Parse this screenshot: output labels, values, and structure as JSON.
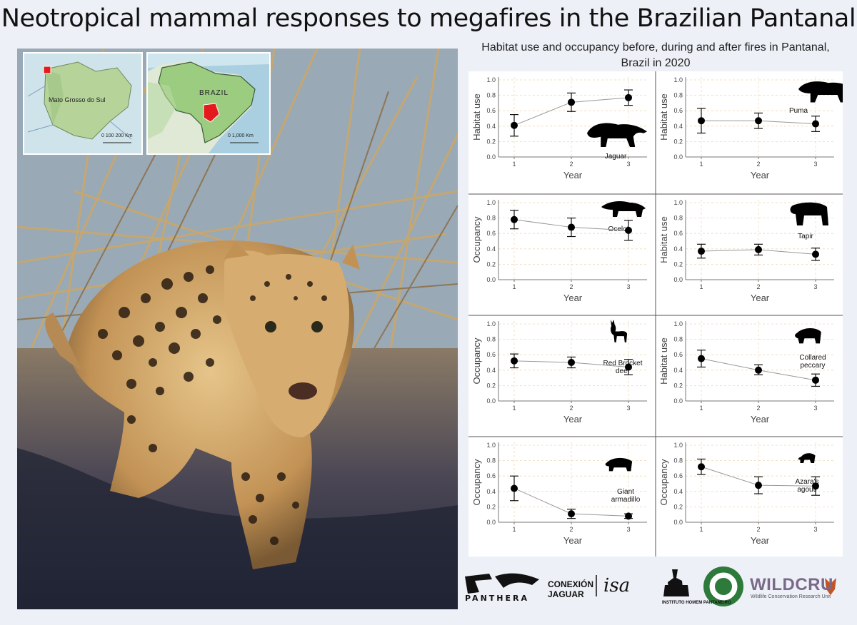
{
  "title": "Neotropical mammal responses to megafires in the Brazilian Pantanal",
  "panel_title": "Habitat use and occupancy before, during and after fires in Pantanal, Brazil in 2020",
  "maps": {
    "state_label": "Mato Grosso do Sul",
    "state_scale": "0  100  200 Km",
    "country_label": "BRAZIL",
    "country_scale": "0       1,000 Km"
  },
  "logos": {
    "panthera": "PANTHERA",
    "conexion_line1": "CONEXIÓN",
    "conexion_line2": "JAGUAR",
    "isa": "isa",
    "ihp": "INSTITUTO HOMEM PANTANEIRO",
    "carnivore_center": "THE CENTER FOR HUMAN-CARNIVORE COEXISTENCE",
    "wildcru": "WILDCRU",
    "wildcru_sub": "Wildlife Conservation Research Unit"
  },
  "chart_data": [
    {
      "type": "scatter",
      "species": "Jaguar",
      "ylabel": "Habitat use",
      "xlabel": "Year",
      "x": [
        1,
        2,
        3
      ],
      "y": [
        0.41,
        0.71,
        0.77
      ],
      "ci_low": [
        0.27,
        0.59,
        0.67
      ],
      "ci_high": [
        0.55,
        0.83,
        0.87
      ],
      "ylim": [
        0,
        1
      ],
      "yticks": [
        "0.0",
        "0.2",
        "0.4",
        "0.6",
        "0.8",
        "1.0"
      ]
    },
    {
      "type": "scatter",
      "species": "Puma",
      "ylabel": "Habitat use",
      "xlabel": "Year",
      "x": [
        1,
        2,
        3
      ],
      "y": [
        0.47,
        0.47,
        0.43
      ],
      "ci_low": [
        0.31,
        0.37,
        0.33
      ],
      "ci_high": [
        0.63,
        0.57,
        0.53
      ],
      "ylim": [
        0,
        1
      ],
      "yticks": [
        "0.0",
        "0.2",
        "0.4",
        "0.6",
        "0.8",
        "1.0"
      ]
    },
    {
      "type": "scatter",
      "species": "Ocelot",
      "ylabel": "Occupancy",
      "xlabel": "Year",
      "x": [
        1,
        2,
        3
      ],
      "y": [
        0.78,
        0.68,
        0.64
      ],
      "ci_low": [
        0.66,
        0.56,
        0.51
      ],
      "ci_high": [
        0.9,
        0.8,
        0.77
      ],
      "ylim": [
        0,
        1
      ],
      "yticks": [
        "0.0",
        "0.2",
        "0.4",
        "0.6",
        "0.8",
        "1.0"
      ]
    },
    {
      "type": "scatter",
      "species": "Tapir",
      "ylabel": "Habitat use",
      "xlabel": "Year",
      "x": [
        1,
        2,
        3
      ],
      "y": [
        0.37,
        0.39,
        0.33
      ],
      "ci_low": [
        0.28,
        0.32,
        0.25
      ],
      "ci_high": [
        0.46,
        0.46,
        0.41
      ],
      "ylim": [
        0,
        1
      ],
      "yticks": [
        "0.0",
        "0.2",
        "0.4",
        "0.6",
        "0.8",
        "1.0"
      ]
    },
    {
      "type": "scatter",
      "species": "Red Brocket deer",
      "ylabel": "Occupancy",
      "xlabel": "Year",
      "x": [
        1,
        2,
        3
      ],
      "y": [
        0.52,
        0.5,
        0.44
      ],
      "ci_low": [
        0.43,
        0.43,
        0.34
      ],
      "ci_high": [
        0.61,
        0.57,
        0.54
      ],
      "ylim": [
        0,
        1
      ],
      "yticks": [
        "0.0",
        "0.2",
        "0.4",
        "0.6",
        "0.8",
        "1.0"
      ]
    },
    {
      "type": "scatter",
      "species": "Collared peccary",
      "ylabel": "Habitat use",
      "xlabel": "Year",
      "x": [
        1,
        2,
        3
      ],
      "y": [
        0.55,
        0.4,
        0.27
      ],
      "ci_low": [
        0.44,
        0.34,
        0.19
      ],
      "ci_high": [
        0.66,
        0.47,
        0.35
      ],
      "ylim": [
        0,
        1
      ],
      "yticks": [
        "0.0",
        "0.2",
        "0.4",
        "0.6",
        "0.8",
        "1.0"
      ]
    },
    {
      "type": "scatter",
      "species": "Giant armadillo",
      "ylabel": "Occupancy",
      "xlabel": "Year",
      "x": [
        1,
        2,
        3
      ],
      "y": [
        0.44,
        0.11,
        0.08
      ],
      "ci_low": [
        0.28,
        0.05,
        0.05
      ],
      "ci_high": [
        0.6,
        0.17,
        0.11
      ],
      "ylim": [
        0,
        1
      ],
      "yticks": [
        "0.0",
        "0.2",
        "0.4",
        "0.6",
        "0.8",
        "1.0"
      ]
    },
    {
      "type": "scatter",
      "species": "Azara's agouti",
      "ylabel": "Occupancy",
      "xlabel": "Year",
      "x": [
        1,
        2,
        3
      ],
      "y": [
        0.72,
        0.48,
        0.47
      ],
      "ci_low": [
        0.62,
        0.37,
        0.35
      ],
      "ci_high": [
        0.82,
        0.59,
        0.59
      ],
      "ylim": [
        0,
        1
      ],
      "yticks": [
        "0.0",
        "0.2",
        "0.4",
        "0.6",
        "0.8",
        "1.0"
      ]
    }
  ]
}
